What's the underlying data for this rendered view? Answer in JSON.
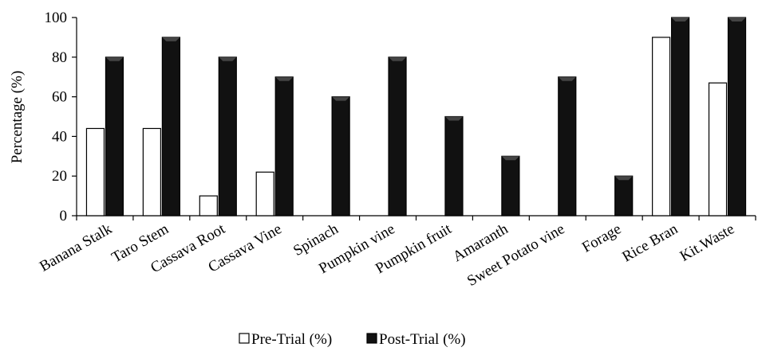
{
  "chart_data": {
    "type": "bar",
    "title": "",
    "xlabel": "",
    "ylabel": "Percentage (%)",
    "ylim": [
      0,
      100
    ],
    "yticks": [
      "0",
      "20",
      "40",
      "60",
      "80",
      "100"
    ],
    "grid": false,
    "legend_position": "bottom",
    "categories": [
      "Banana Stalk",
      "Taro Stem",
      "Cassava Root",
      "Cassava Vine",
      "Spinach",
      "Pumpkin vine",
      "Pumpkin fruit",
      "Amaranth",
      "Sweet Potato vine",
      "Forage",
      "Rice Bran",
      "Kit.Waste"
    ],
    "series": [
      {
        "name": "Pre-Trial (%)",
        "values": [
          44,
          44,
          10,
          22,
          0,
          0,
          0,
          0,
          0,
          0,
          90,
          67
        ],
        "fill": "#ffffff",
        "stroke": "#000000"
      },
      {
        "name": "Post-Trial (%)",
        "values": [
          80,
          90,
          80,
          70,
          60,
          80,
          50,
          30,
          70,
          20,
          100,
          100
        ],
        "fill": "#111111",
        "stroke": "#000000"
      }
    ]
  }
}
